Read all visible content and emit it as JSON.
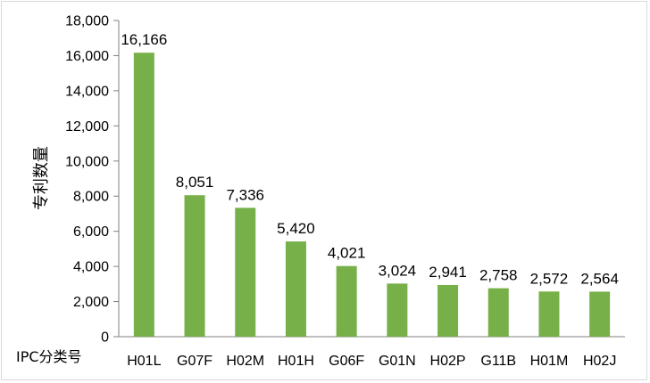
{
  "chart_data": {
    "type": "bar",
    "categories": [
      "H01L",
      "G07F",
      "H02M",
      "H01H",
      "G06F",
      "G01N",
      "H02P",
      "G11B",
      "H01M",
      "H02J"
    ],
    "values": [
      16166,
      8051,
      7336,
      5420,
      4021,
      3024,
      2941,
      2758,
      2572,
      2564
    ],
    "data_labels": [
      "16,166",
      "8,051",
      "7,336",
      "5,420",
      "4,021",
      "3,024",
      "2,941",
      "2,758",
      "2,572",
      "2,564"
    ],
    "ylabel": "专利数量",
    "xlabel": "IPC分类号",
    "ylim": [
      0,
      18000
    ],
    "yticks": [
      0,
      2000,
      4000,
      6000,
      8000,
      10000,
      12000,
      14000,
      16000,
      18000
    ],
    "ytick_labels": [
      "0",
      "2,000",
      "4,000",
      "6,000",
      "8,000",
      "10,000",
      "12,000",
      "14,000",
      "16,000",
      "18,000"
    ],
    "bar_color": "#77b048",
    "grid": false,
    "legend": "none"
  }
}
